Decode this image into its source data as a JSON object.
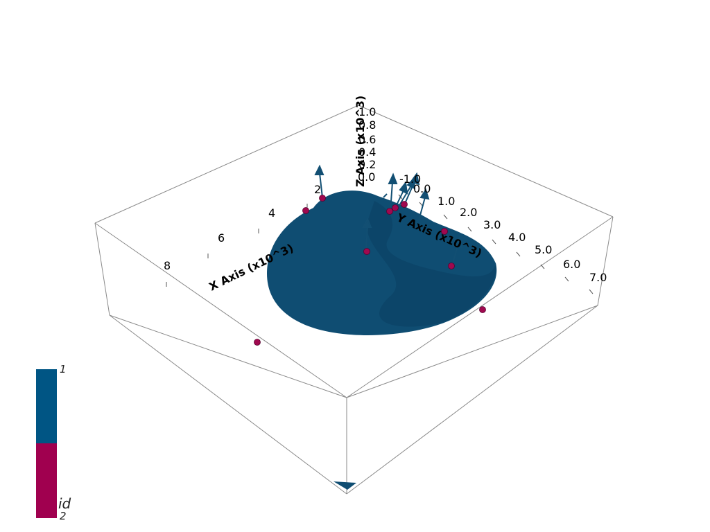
{
  "colors": {
    "surface": "#0f4d72",
    "surface_dark": "#0a3d5e",
    "point": "#a0094f",
    "arrow": "#124f73",
    "bar_high": "#005584",
    "bar_low": "#a0004f",
    "box": "#888888"
  },
  "axes": {
    "x_title": "X Axis (x10^3)",
    "y_title": "Y Axis (x10^3)",
    "z_title": "Z Axis (x10^3)",
    "x_ticks": [
      "2",
      "4",
      "6",
      "8"
    ],
    "y_ticks": [
      "-1.0",
      "0.0",
      "1.0",
      "2.0",
      "3.0",
      "4.0",
      "5.0",
      "6.0",
      "7.0"
    ],
    "z_ticks": [
      "0.0",
      "0.2",
      "0.4",
      "0.6",
      "0.8",
      "1.0"
    ]
  },
  "scalar_bar": {
    "title": "id",
    "max_label": "1",
    "min_label": "2"
  }
}
